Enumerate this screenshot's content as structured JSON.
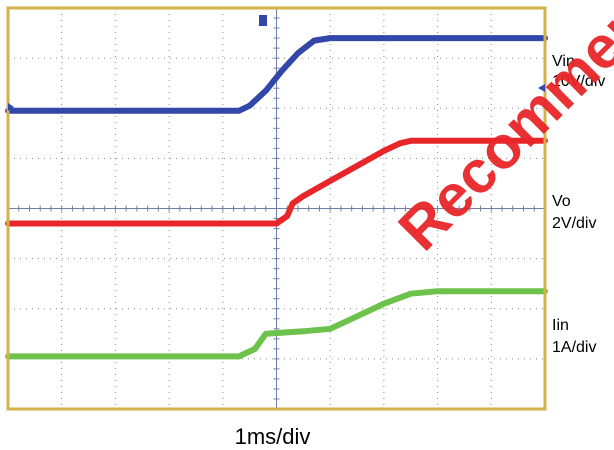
{
  "chart_data": {
    "type": "line",
    "title": "",
    "xlabel": "1ms/div",
    "ylabel": "",
    "grid": true,
    "x_divisions": 10,
    "y_divisions": 8,
    "xlim": [
      0,
      10
    ],
    "ylim": [
      0,
      8
    ],
    "series": [
      {
        "name": "Vin",
        "scale": "10V/div",
        "color": "#3347a8",
        "x": [
          0,
          4.3,
          4.5,
          4.8,
          5.1,
          5.4,
          5.7,
          6.0,
          10
        ],
        "y": [
          5.95,
          5.95,
          6.05,
          6.35,
          6.75,
          7.1,
          7.35,
          7.4,
          7.4
        ]
      },
      {
        "name": "Vo",
        "scale": "2V/div",
        "color": "#e8262a",
        "x": [
          0,
          5.0,
          5.2,
          5.3,
          5.5,
          6.0,
          6.5,
          7.0,
          7.3,
          7.5,
          10
        ],
        "y": [
          3.7,
          3.7,
          3.85,
          4.1,
          4.25,
          4.55,
          4.85,
          5.15,
          5.3,
          5.35,
          5.35
        ]
      },
      {
        "name": "Iin",
        "scale": "1A/div",
        "color": "#6cc24a",
        "x": [
          0,
          4.3,
          4.6,
          4.8,
          5.5,
          6.0,
          6.5,
          7.0,
          7.5,
          8.0,
          10
        ],
        "y": [
          1.05,
          1.05,
          1.2,
          1.5,
          1.55,
          1.6,
          1.85,
          2.1,
          2.3,
          2.35,
          2.35
        ]
      }
    ],
    "annotations": [
      "Vin",
      "10V/div",
      "Vo",
      "2V/div",
      "Iin",
      "1A/div"
    ]
  },
  "watermark": "Recommended"
}
